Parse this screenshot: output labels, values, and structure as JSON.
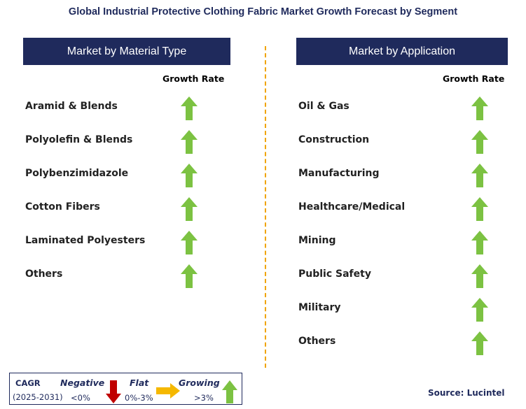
{
  "title": "Global Industrial Protective Clothing Fabric Market Growth Forecast by Segment",
  "left": {
    "header": "Market by Material Type",
    "growth_label": "Growth Rate",
    "items": [
      {
        "label": "Aramid & Blends",
        "trend": "growing"
      },
      {
        "label": "Polyolefin & Blends",
        "trend": "growing"
      },
      {
        "label": "Polybenzimidazole",
        "trend": "growing"
      },
      {
        "label": "Cotton Fibers",
        "trend": "growing"
      },
      {
        "label": "Laminated Polyesters",
        "trend": "growing"
      },
      {
        "label": "Others",
        "trend": "growing"
      }
    ]
  },
  "right": {
    "header": "Market by Application",
    "growth_label": "Growth Rate",
    "items": [
      {
        "label": "Oil & Gas",
        "trend": "growing"
      },
      {
        "label": "Construction",
        "trend": "growing"
      },
      {
        "label": "Manufacturing",
        "trend": "growing"
      },
      {
        "label": "Healthcare/Medical",
        "trend": "growing"
      },
      {
        "label": "Mining",
        "trend": "growing"
      },
      {
        "label": "Public Safety",
        "trend": "growing"
      },
      {
        "label": "Military",
        "trend": "growing"
      },
      {
        "label": "Others",
        "trend": "growing"
      }
    ]
  },
  "legend": {
    "cagr": "CAGR",
    "period": "(2025-2031)",
    "negative": {
      "label": "Negative",
      "range": "<0%",
      "color": "#c00000"
    },
    "flat": {
      "label": "Flat",
      "range": "0%-3%",
      "color": "#f5b800"
    },
    "growing": {
      "label": "Growing",
      "range": ">3%",
      "color": "#7cc242"
    }
  },
  "source": "Source: Lucintel"
}
